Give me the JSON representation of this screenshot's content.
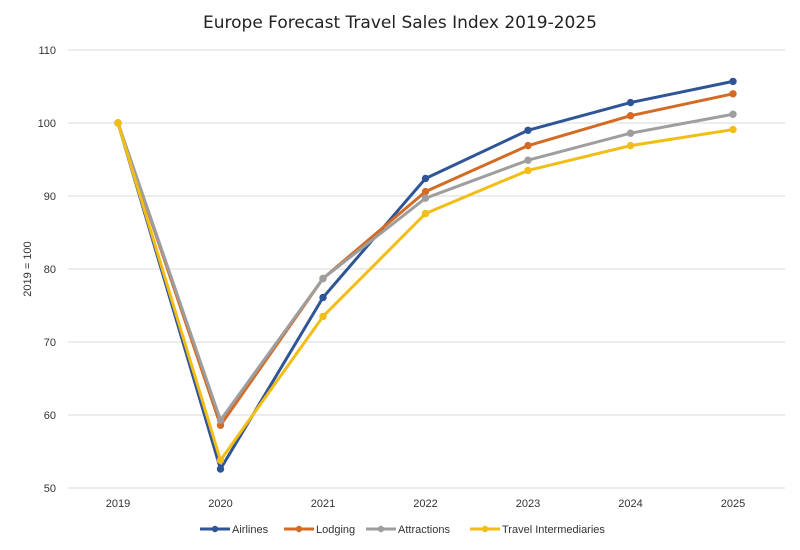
{
  "chart_data": {
    "type": "line",
    "title": "Europe Forecast Travel Sales Index 2019-2025",
    "xlabel": "",
    "ylabel": "2019 = 100",
    "categories": [
      "2019",
      "2020",
      "2021",
      "2022",
      "2023",
      "2024",
      "2025"
    ],
    "ylim": [
      50,
      110
    ],
    "yticks": [
      50,
      60,
      70,
      80,
      90,
      100,
      110
    ],
    "grid": true,
    "legend_position": "bottom",
    "series": [
      {
        "name": "Airlines",
        "color": "#2F5597",
        "values": [
          100,
          52.6,
          76.1,
          92.4,
          99.0,
          102.8,
          105.7
        ]
      },
      {
        "name": "Lodging",
        "color": "#D46B25",
        "values": [
          100,
          58.6,
          78.7,
          90.6,
          96.9,
          101.0,
          104.0
        ]
      },
      {
        "name": "Attractions",
        "color": "#9E9E9E",
        "values": [
          100,
          59.3,
          78.7,
          89.7,
          94.9,
          98.6,
          101.2
        ]
      },
      {
        "name": "Travel Intermediaries",
        "color": "#F2BE16",
        "values": [
          100,
          53.8,
          73.5,
          87.6,
          93.5,
          96.9,
          99.1
        ]
      }
    ]
  }
}
